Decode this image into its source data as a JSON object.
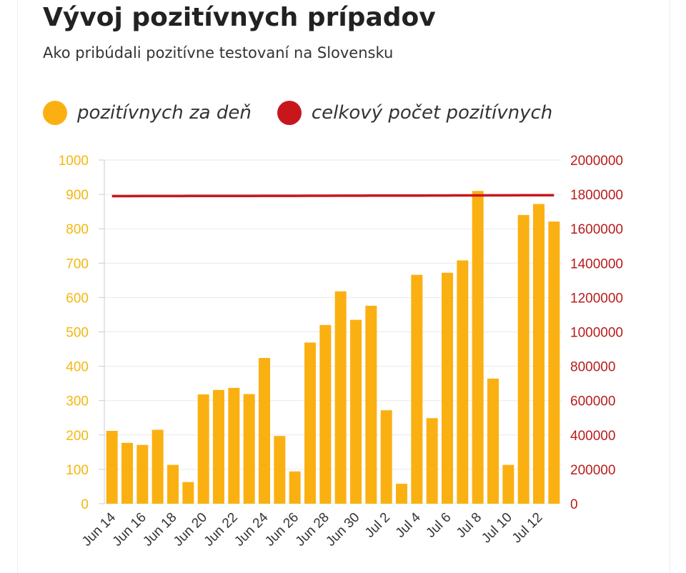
{
  "title": "Vývoj pozitívnych prípadov",
  "subtitle": "Ako pribúdali pozitívne testovaní na Slovensku",
  "legend": [
    {
      "label": "pozitívnych za deň",
      "color": "#fbb012"
    },
    {
      "label": "celkový počet pozitívnych",
      "color": "#c8161d"
    }
  ],
  "chart_data": {
    "type": "bar",
    "categories": [
      "Jun 14",
      "Jun 15",
      "Jun 16",
      "Jun 17",
      "Jun 18",
      "Jun 19",
      "Jun 20",
      "Jun 21",
      "Jun 22",
      "Jun 23",
      "Jun 24",
      "Jun 25",
      "Jun 26",
      "Jun 27",
      "Jun 28",
      "Jun 29",
      "Jun 30",
      "Jul 1",
      "Jul 2",
      "Jul 3",
      "Jul 4",
      "Jul 5",
      "Jul 6",
      "Jul 7",
      "Jul 8",
      "Jul 9",
      "Jul 10",
      "Jul 11",
      "Jul 12",
      "Jul 13"
    ],
    "x_tick_labels": [
      "Jun 14",
      "Jun 16",
      "Jun 18",
      "Jun 20",
      "Jun 22",
      "Jun 24",
      "Jun 26",
      "Jun 28",
      "Jun 30",
      "Jul 2",
      "Jul 4",
      "Jul 6",
      "Jul 8",
      "Jul 10",
      "Jul 12"
    ],
    "series": [
      {
        "name": "pozitívnych za deň",
        "type": "bar",
        "axis": "left",
        "color": "#fbb012",
        "values": [
          212,
          177,
          171,
          215,
          113,
          63,
          318,
          331,
          337,
          319,
          424,
          197,
          94,
          469,
          520,
          618,
          535,
          576,
          272,
          58,
          666,
          249,
          672,
          708,
          910,
          364,
          113,
          840,
          872,
          821
        ]
      },
      {
        "name": "celkový počet pozitívnych",
        "type": "line",
        "axis": "right",
        "color": "#c8161d",
        "values": [
          1790000,
          1790100,
          1790300,
          1790400,
          1790600,
          1790700,
          1790900,
          1791000,
          1791200,
          1791300,
          1791500,
          1791600,
          1791800,
          1792000,
          1792200,
          1792400,
          1792600,
          1792800,
          1793000,
          1793200,
          1793400,
          1793600,
          1793800,
          1794000,
          1794300,
          1794600,
          1794800,
          1795000,
          1795300,
          1795600
        ]
      }
    ],
    "ylim_left": [
      0,
      1000
    ],
    "yticks_left": [
      0,
      100,
      200,
      300,
      400,
      500,
      600,
      700,
      800,
      900,
      1000
    ],
    "ylim_right": [
      0,
      2000000
    ],
    "yticks_right": [
      0,
      200000,
      400000,
      600000,
      800000,
      1000000,
      1200000,
      1400000,
      1600000,
      1800000,
      2000000
    ],
    "grid": true
  }
}
